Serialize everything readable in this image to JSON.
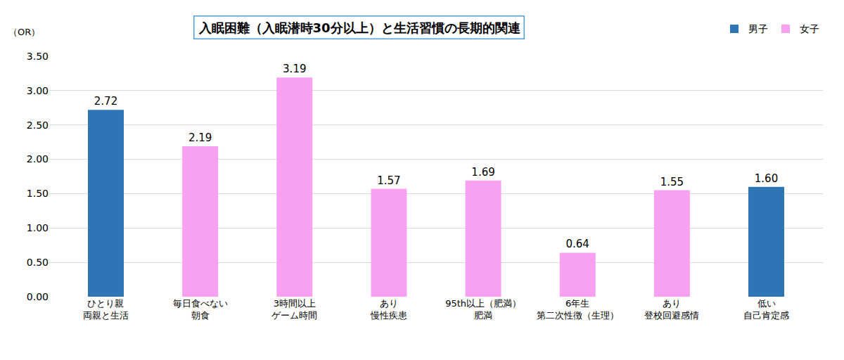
{
  "chart_data": {
    "type": "bar",
    "title": "入眠困難（入眠潜時30分以上）と生活習慣の長期的関連",
    "y_label": "（OR）",
    "categories": [
      "ひとり親\n両親と生活",
      "毎日食べない\n朝食",
      "3時間以上\nゲーム時間",
      "あり\n慢性疾患",
      "95th以上（肥満）\n肥満",
      "6年生\n第二次性徴（生理）",
      "あり\n登校回避感情",
      "低い\n自己肯定感"
    ],
    "series": [
      {
        "name": "男子",
        "color": "#2e75b6",
        "values": [
          2.72,
          null,
          null,
          null,
          null,
          null,
          null,
          1.6
        ],
        "value_labels": [
          "2.72",
          null,
          null,
          null,
          null,
          null,
          null,
          "1.60"
        ]
      },
      {
        "name": "女子",
        "color": "#f7a1f0",
        "values": [
          null,
          2.19,
          3.19,
          1.57,
          1.69,
          0.64,
          1.55,
          null
        ],
        "value_labels": [
          null,
          "2.19",
          "3.19",
          "1.57",
          "1.69",
          "0.64",
          "1.55",
          null
        ]
      }
    ],
    "ylim": [
      0,
      3.5
    ],
    "yticks": [
      {
        "value": 0,
        "label": "0.00"
      },
      {
        "value": 0.5,
        "label": "0.50"
      },
      {
        "value": 1,
        "label": "1.00"
      },
      {
        "value": 1.5,
        "label": "1.50"
      },
      {
        "value": 2,
        "label": "2.00"
      },
      {
        "value": 2.5,
        "label": "2.50"
      },
      {
        "value": 3,
        "label": "3.00"
      },
      {
        "value": 3.5,
        "label": "3.50"
      }
    ],
    "grid": true,
    "legend": "upper right",
    "data_labels": true
  }
}
